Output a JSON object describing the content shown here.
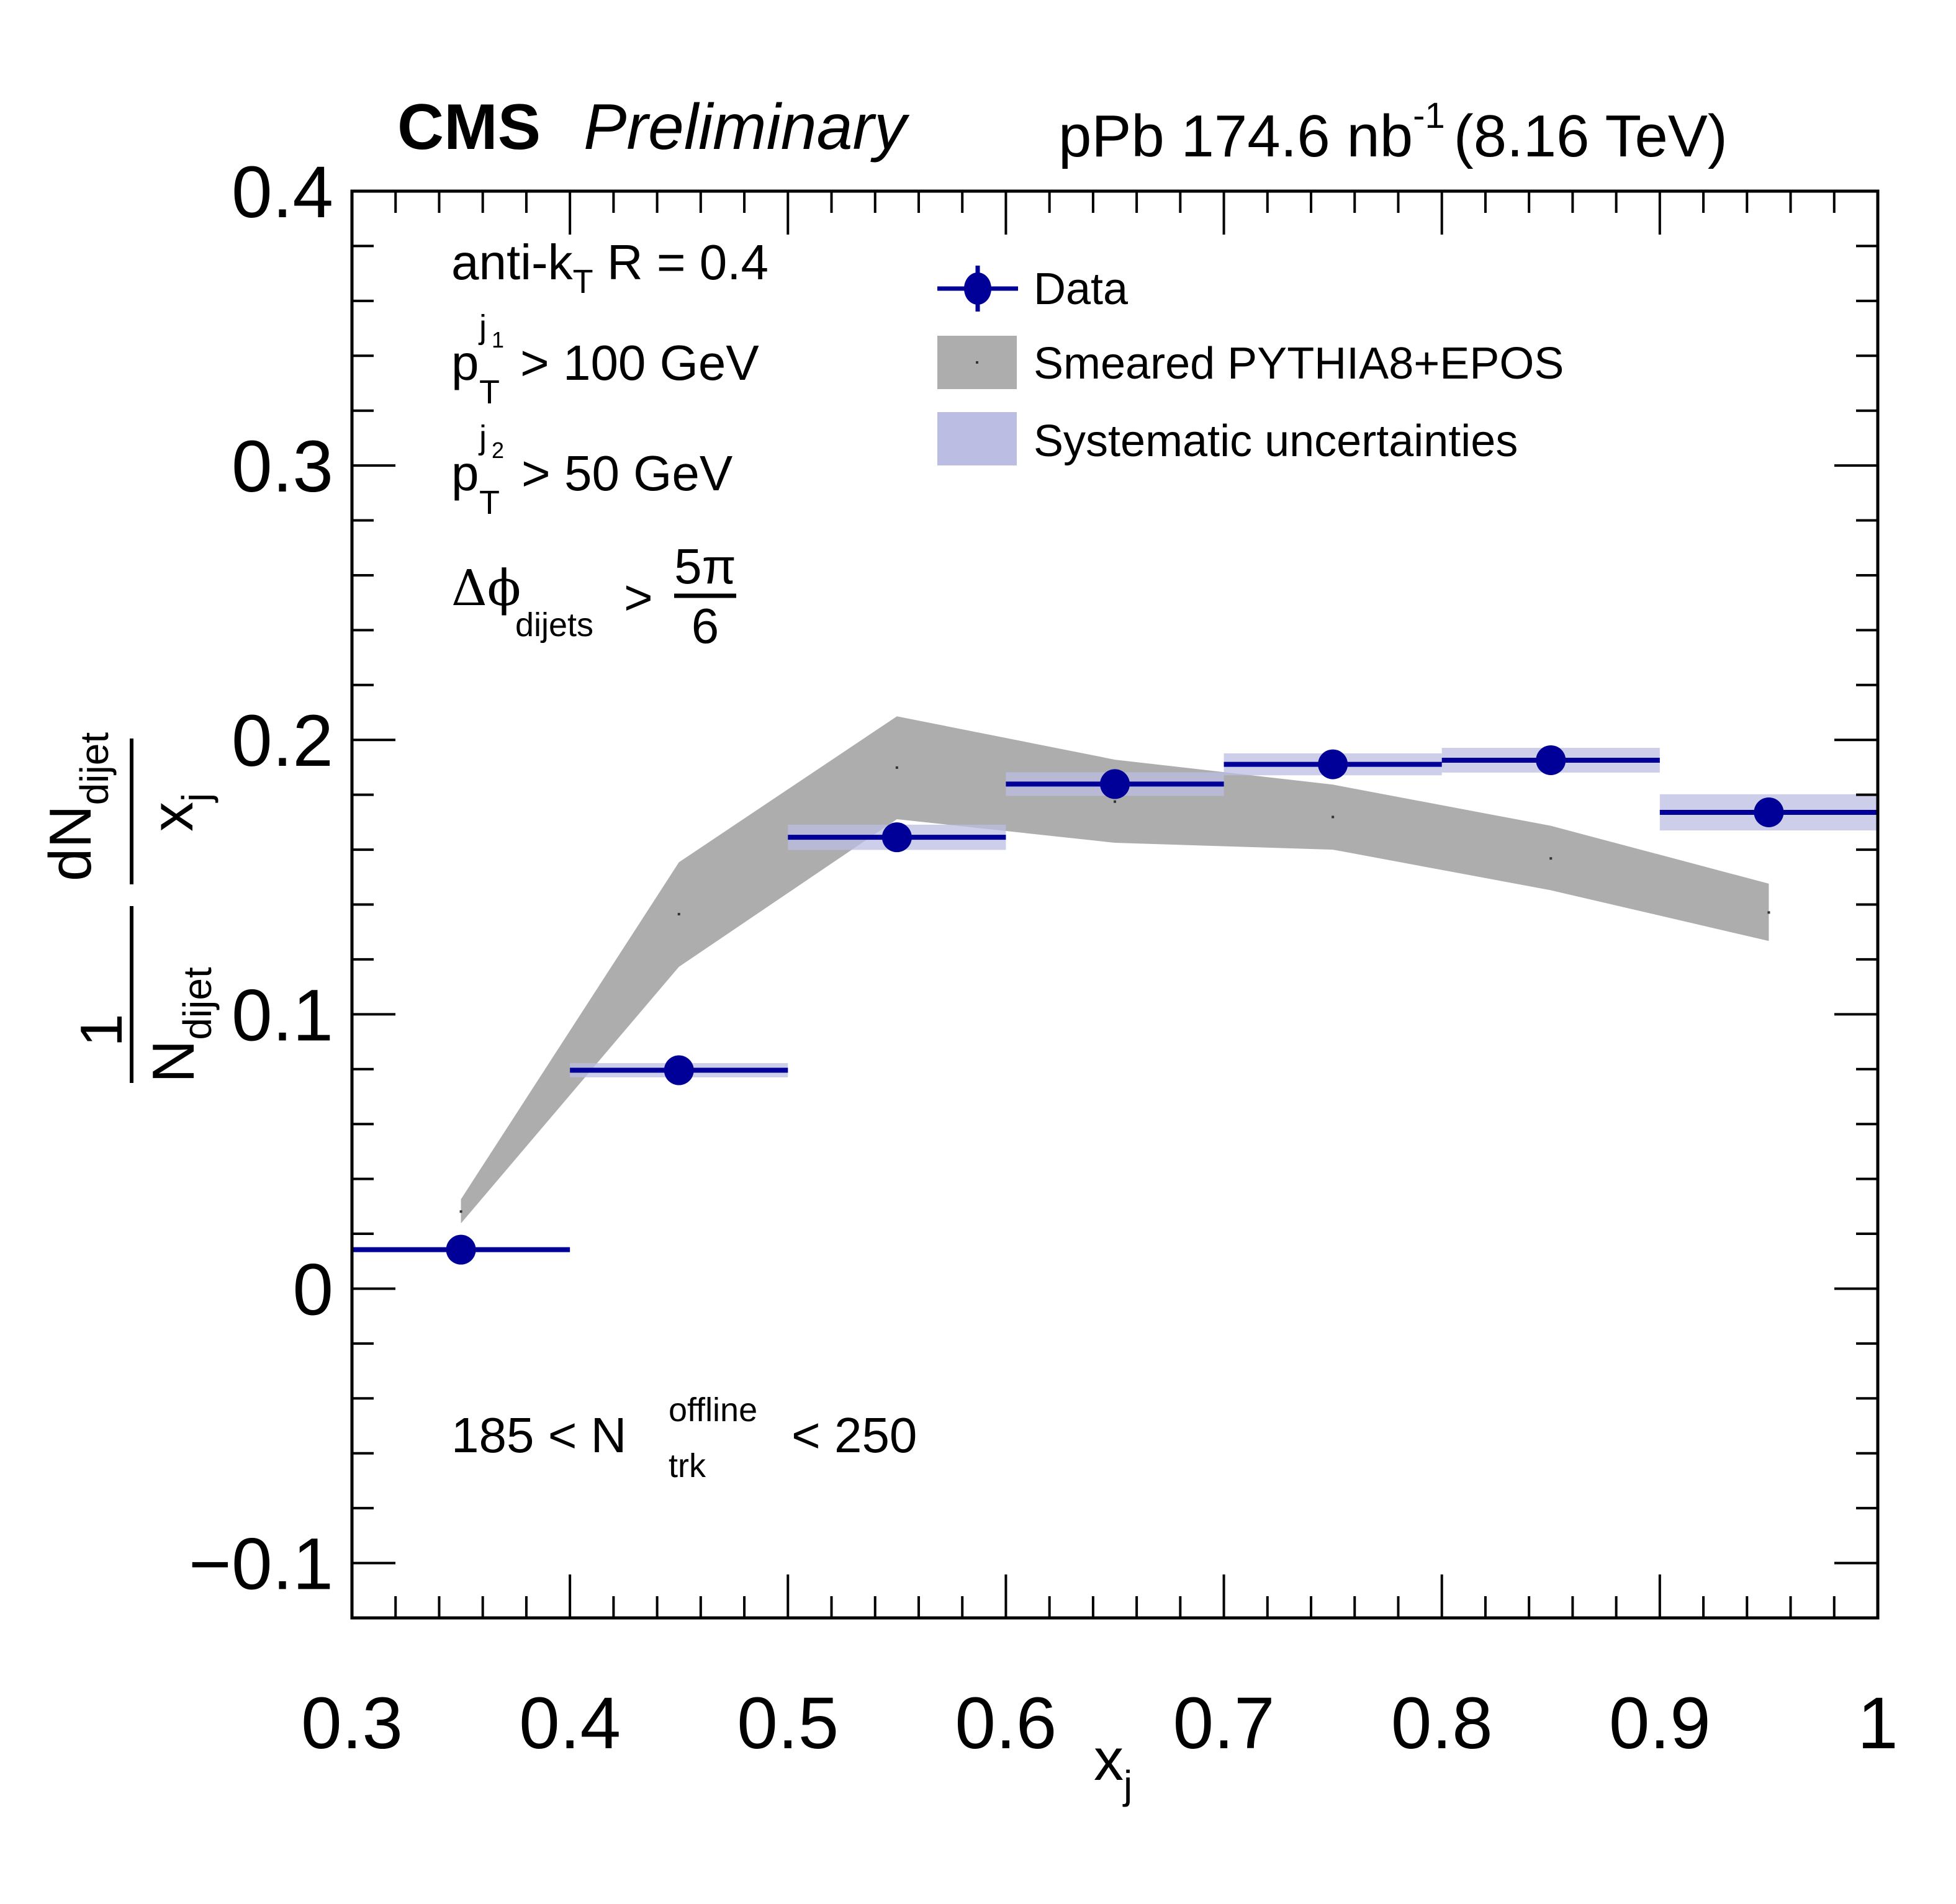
{
  "header": {
    "experiment": "CMS",
    "status": "Preliminary",
    "system": "pPb 174.6 nb",
    "lumi_exponent": "-1",
    "energy": "(8.16 TeV)"
  },
  "annotations": {
    "algo_main": "anti-k",
    "algo_sub": "T",
    "algo_rest": " R = 0.4",
    "pt1_p": "p",
    "pt1_sub": "T",
    "pt1_sup": "j",
    "pt1_supsub": "1",
    "pt1_rest": "> 100 GeV",
    "pt2_p": "p",
    "pt2_sub": "T",
    "pt2_sup": "j",
    "pt2_supsub": "2",
    "pt2_rest": "> 50 GeV",
    "dphi_main": "Δϕ",
    "dphi_sub": "dijets",
    "dphi_gt": ">",
    "dphi_num": "5π",
    "dphi_den": "6",
    "mult_left": "185 < N",
    "mult_sup": "offline",
    "mult_sub": "trk",
    "mult_right": "< 250"
  },
  "legend": {
    "data": "Data",
    "mc": "Smeared PYTHIA8+EPOS",
    "syst": "Systematic uncertainties"
  },
  "colors": {
    "data": "#000099",
    "mc_band": "#adadad",
    "mc_center": "#333333",
    "syst_band": "#bcbde3",
    "overlap_band": "#8a8aa0"
  },
  "chart_data": {
    "type": "scatter",
    "title": "CMS Preliminary — pPb 174.6 nb^-1 (8.16 TeV)",
    "xlabel": "x_j",
    "ylabel": "1/N_dijet dN_dijet/x_j",
    "xlim": [
      0.3,
      1.0
    ],
    "ylim": [
      -0.12,
      0.4
    ],
    "x_ticks": [
      0.3,
      0.4,
      0.5,
      0.6,
      0.7,
      0.8,
      0.9,
      1.0
    ],
    "x_tick_labels": [
      "0.3",
      "0.4",
      "0.5",
      "0.6",
      "0.7",
      "0.8",
      "0.9",
      "1"
    ],
    "y_ticks": [
      -0.1,
      0.0,
      0.1,
      0.2,
      0.3,
      0.4
    ],
    "y_tick_labels": [
      "−0.1",
      "0",
      "0.1",
      "0.2",
      "0.3",
      "0.4"
    ],
    "x_minor_step": 0.02,
    "y_minor_step": 0.02,
    "grid": false,
    "legend_position": "top-right",
    "bin_edges": [
      0.3,
      0.4,
      0.5,
      0.6,
      0.7,
      0.8,
      0.9,
      1.0
    ],
    "series": [
      {
        "name": "Data",
        "kind": "points",
        "x": [
          0.35,
          0.45,
          0.55,
          0.65,
          0.75,
          0.85,
          0.95
        ],
        "y": [
          0.0142,
          0.0796,
          0.1645,
          0.1839,
          0.1911,
          0.1926,
          0.1736
        ],
        "syst": [
          0.0,
          0.0026,
          0.0046,
          0.0043,
          0.004,
          0.0045,
          0.0066
        ]
      },
      {
        "name": "Smeared PYTHIA8+EPOS",
        "kind": "band",
        "x": [
          0.35,
          0.45,
          0.55,
          0.65,
          0.75,
          0.85,
          0.95
        ],
        "center": [
          0.0281,
          0.1365,
          0.1899,
          0.1775,
          0.1719,
          0.1568,
          0.1371
        ],
        "upper": [
          0.0326,
          0.1554,
          0.2086,
          0.1928,
          0.1837,
          0.1687,
          0.1476
        ],
        "lower": [
          0.0238,
          0.1173,
          0.1711,
          0.1625,
          0.16,
          0.1452,
          0.1267
        ]
      }
    ]
  }
}
